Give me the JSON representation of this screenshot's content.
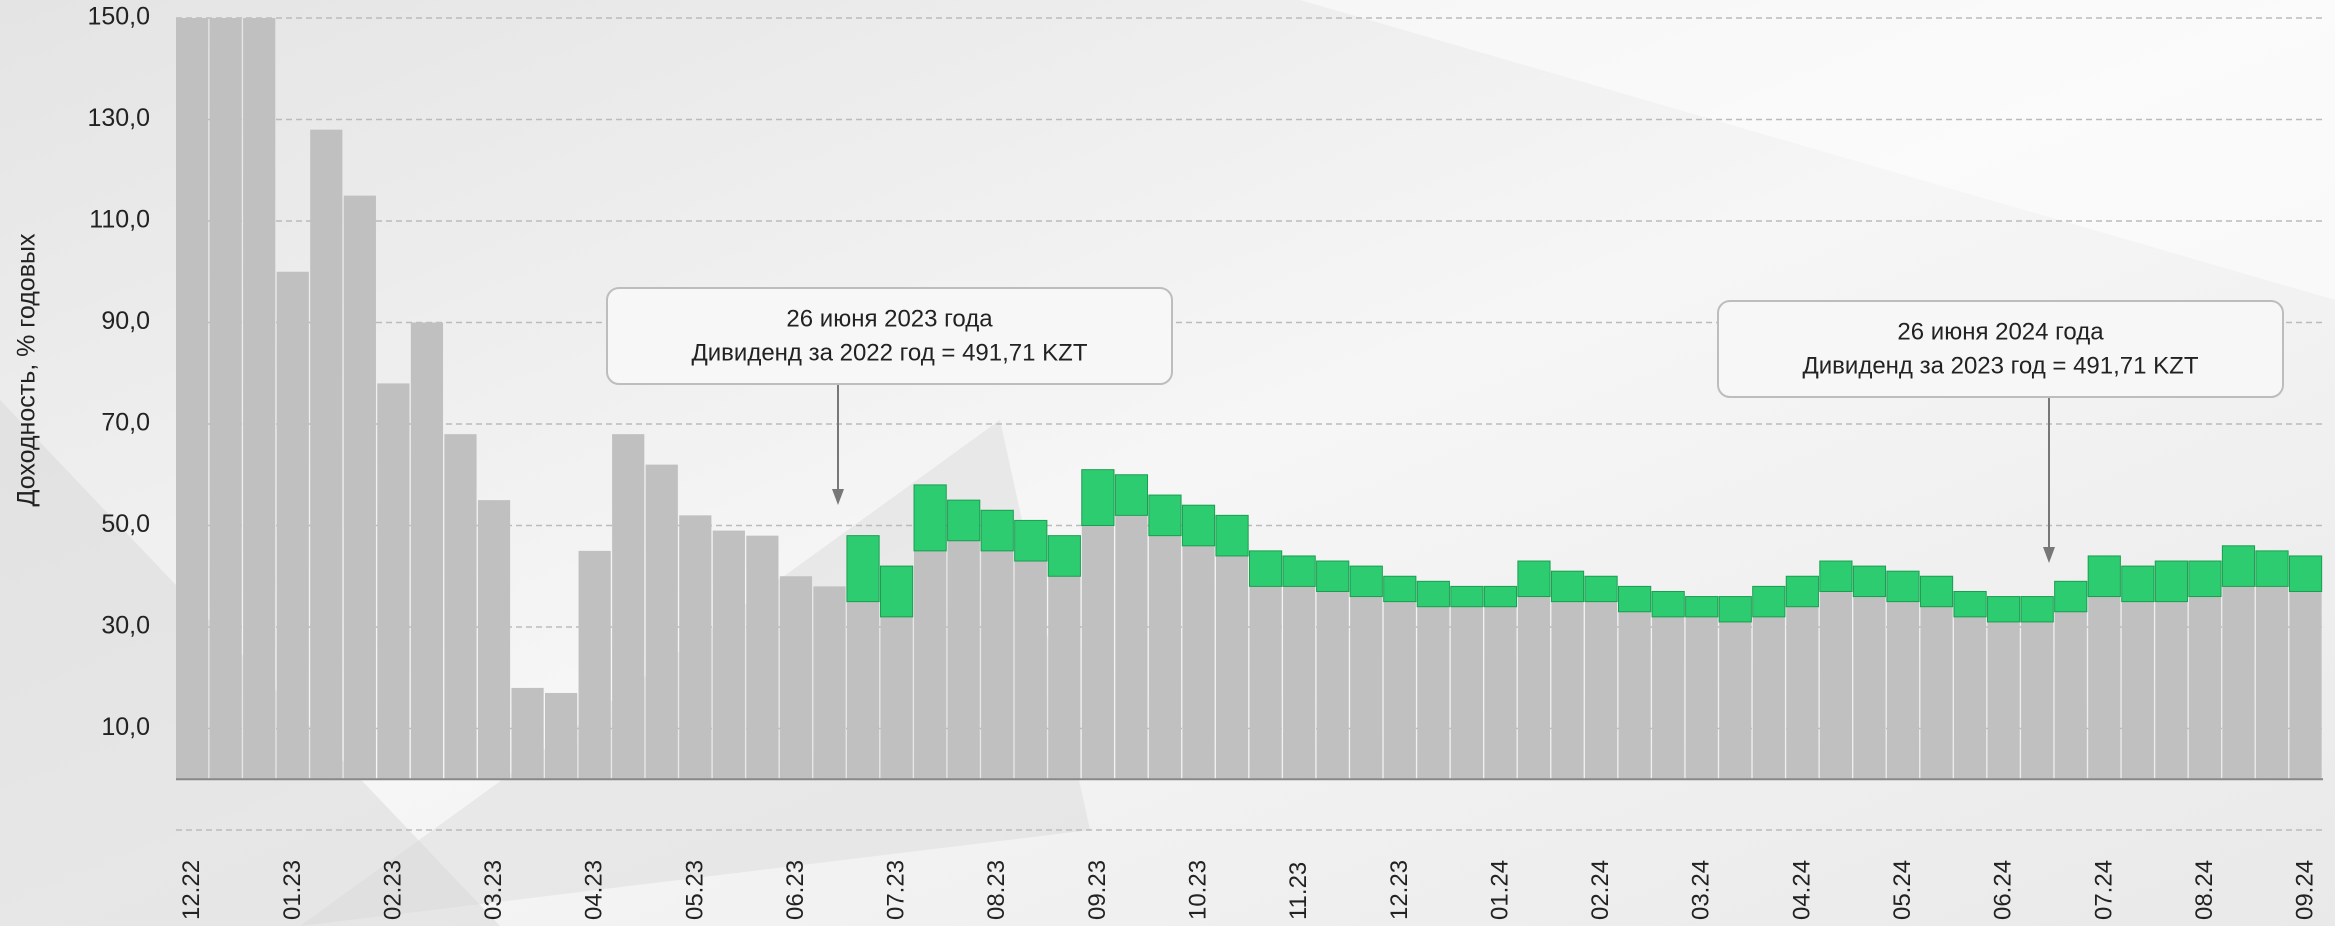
{
  "chart_data": {
    "type": "range_bar",
    "y_label": "Доходность, % годовых",
    "categories": [
      "12.22",
      null,
      null,
      "01.23",
      null,
      null,
      "02.23",
      null,
      null,
      "03.23",
      null,
      null,
      "04.23",
      null,
      null,
      "05.23",
      null,
      null,
      "06.23",
      null,
      null,
      "07.23",
      null,
      null,
      "08.23",
      null,
      null,
      "09.23",
      null,
      null,
      "10.23",
      null,
      null,
      "11.23",
      null,
      null,
      "12.23",
      null,
      null,
      "01.24",
      null,
      null,
      "02.24",
      null,
      null,
      "03.24",
      null,
      null,
      "04.24",
      null,
      null,
      "05.24",
      null,
      null,
      "06.24",
      null,
      null,
      "07.24",
      null,
      null,
      "08.24",
      null,
      null,
      "09.24"
    ],
    "values": [
      150,
      150,
      150,
      100,
      128,
      115,
      78,
      90,
      68,
      55,
      18,
      17,
      45,
      68,
      62,
      52,
      49,
      48,
      40,
      38,
      35,
      32,
      45,
      47,
      45,
      43,
      40,
      50,
      52,
      48,
      46,
      44,
      38,
      38,
      37,
      36,
      35,
      34,
      34,
      34,
      36,
      35,
      35,
      33,
      32,
      32,
      31,
      32,
      34,
      37,
      36,
      35,
      34,
      32,
      31,
      31,
      33,
      36,
      35,
      35,
      36,
      38,
      38,
      37
    ],
    "high": [
      null,
      null,
      null,
      null,
      null,
      null,
      null,
      null,
      null,
      null,
      null,
      null,
      null,
      null,
      null,
      null,
      null,
      null,
      null,
      null,
      48,
      42,
      58,
      55,
      53,
      51,
      48,
      61,
      60,
      56,
      54,
      52,
      45,
      44,
      43,
      42,
      40,
      39,
      38,
      38,
      43,
      41,
      40,
      38,
      37,
      36,
      36,
      38,
      40,
      43,
      42,
      41,
      40,
      37,
      36,
      36,
      39,
      44,
      42,
      43,
      43,
      46,
      45,
      44
    ],
    "color": "#c0c0c0",
    "high_color": "#2ecc71",
    "ylim": [
      -10,
      150
    ],
    "yticks": [
      {
        "value": 10,
        "label": "10,0"
      },
      {
        "value": 30,
        "label": "30,0"
      },
      {
        "value": 50,
        "label": "50,0"
      },
      {
        "value": 70,
        "label": "70,0"
      },
      {
        "value": 90,
        "label": "90,0"
      },
      {
        "value": 110,
        "label": "110,0"
      },
      {
        "value": 130,
        "label": "130,0"
      },
      {
        "value": 150,
        "label": "150,0"
      }
    ],
    "grid": true,
    "annotations": [
      {
        "date": "26 июня 2023 года",
        "text": "Дивиденд за 2022 год = 491,71 KZT"
      },
      {
        "date": "26 июня 2024 года",
        "text": "Дивиденд за 2023 год = 491,71 KZT"
      }
    ]
  }
}
